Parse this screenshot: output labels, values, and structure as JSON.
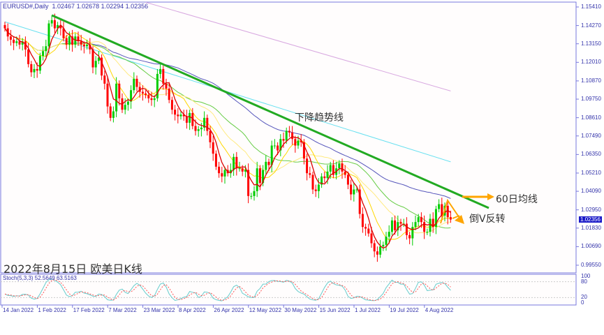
{
  "header": {
    "symbol": "EURUSD#,Daily",
    "ohlc": "1.02467 1.02678 1.02294 1.02356"
  },
  "caption": "2022年8月15日 欧美日K线",
  "stoch_label": "Stoch(5,3,3) 52.5649 63.5163",
  "annotations": {
    "trendline": "下降趋势线",
    "ma60": "60日均线",
    "reversal": "倒V反转"
  },
  "current_price": "1.02356",
  "colors": {
    "bull": "#00cc00",
    "bear": "#ff0000",
    "ma5": "#dd0000",
    "ma10": "#ffd700",
    "ma20": "#ffea80",
    "ma30": "#66cc44",
    "ma60": "#5555bb",
    "ma120": "#66e0f0",
    "ma200": "#d8a8e0",
    "trendline": "#22aa22",
    "arrow": "#ffa500",
    "stochK": "#66cccc",
    "stochD": "#ff5555"
  },
  "chart_data": {
    "type": "candlestick",
    "y_ticks": [
      "1.15410",
      "1.14270",
      "1.13150",
      "1.12010",
      "1.10870",
      "1.09750",
      "1.08610",
      "1.07490",
      "1.06350",
      "1.05210",
      "1.04090",
      "1.02950",
      "1.01830",
      "1.00690",
      "0.99550"
    ],
    "ylim": [
      0.9955,
      1.1541
    ],
    "x_ticks": [
      "14 Jan 2022",
      "1 Feb 2022",
      "17 Feb 2022",
      "7 Mar 2022",
      "23 Mar 2022",
      "8 Apr 2022",
      "26 Apr 2022",
      "12 May 2022",
      "30 May 2022",
      "15 Jun 2022",
      "1 Jul 2022",
      "19 Jul 2022",
      "4 Aug 2022"
    ],
    "closes": [
      1.141,
      1.136,
      1.134,
      1.132,
      1.133,
      1.131,
      1.133,
      1.128,
      1.119,
      1.114,
      1.116,
      1.115,
      1.124,
      1.127,
      1.13,
      1.144,
      1.146,
      1.141,
      1.143,
      1.141,
      1.135,
      1.131,
      1.136,
      1.131,
      1.136,
      1.133,
      1.131,
      1.13,
      1.131,
      1.128,
      1.117,
      1.121,
      1.123,
      1.112,
      1.107,
      1.093,
      1.086,
      1.09,
      1.107,
      1.098,
      1.091,
      1.094,
      1.096,
      1.103,
      1.11,
      1.105,
      1.102,
      1.101,
      1.1,
      1.098,
      1.097,
      1.098,
      1.113,
      1.116,
      1.107,
      1.104,
      1.097,
      1.091,
      1.088,
      1.087,
      1.088,
      1.087,
      1.083,
      1.089,
      1.081,
      1.078,
      1.079,
      1.08,
      1.086,
      1.078,
      1.071,
      1.064,
      1.056,
      1.052,
      1.05,
      1.054,
      1.052,
      1.054,
      1.062,
      1.055,
      1.055,
      1.053,
      1.054,
      1.038,
      1.038,
      1.041,
      1.055,
      1.046,
      1.054,
      1.059,
      1.057,
      1.069,
      1.069,
      1.066,
      1.073,
      1.072,
      1.078,
      1.077,
      1.073,
      1.069,
      1.072,
      1.071,
      1.061,
      1.052,
      1.051,
      1.042,
      1.041,
      1.045,
      1.05,
      1.049,
      1.053,
      1.057,
      1.051,
      1.055,
      1.058,
      1.053,
      1.051,
      1.045,
      1.039,
      1.042,
      1.042,
      1.027,
      1.019,
      1.018,
      1.015,
      1.009,
      1.004,
      1.002,
      1.007,
      1.008,
      1.013,
      1.016,
      1.023,
      1.017,
      1.022,
      1.021,
      1.021,
      1.014,
      1.012,
      1.019,
      1.022,
      1.025,
      1.022,
      1.016,
      1.016,
      1.024,
      1.019,
      1.03,
      1.033,
      1.026,
      1.032,
      1.025,
      1.02356
    ],
    "ma120": {
      "start": 1.145,
      "end": 1.059
    },
    "ma200": {
      "start_date": "23 Mar 2022",
      "start": 1.157,
      "end": 1.1025
    },
    "trendline": {
      "start_date": "1 Feb 2022",
      "start": 1.149,
      "end": 1.03
    },
    "stoch": {
      "k": 52.5649,
      "d": 63.5163,
      "levels": [
        80,
        20
      ],
      "ticks": [
        "100",
        "80",
        "20",
        "0"
      ]
    }
  }
}
